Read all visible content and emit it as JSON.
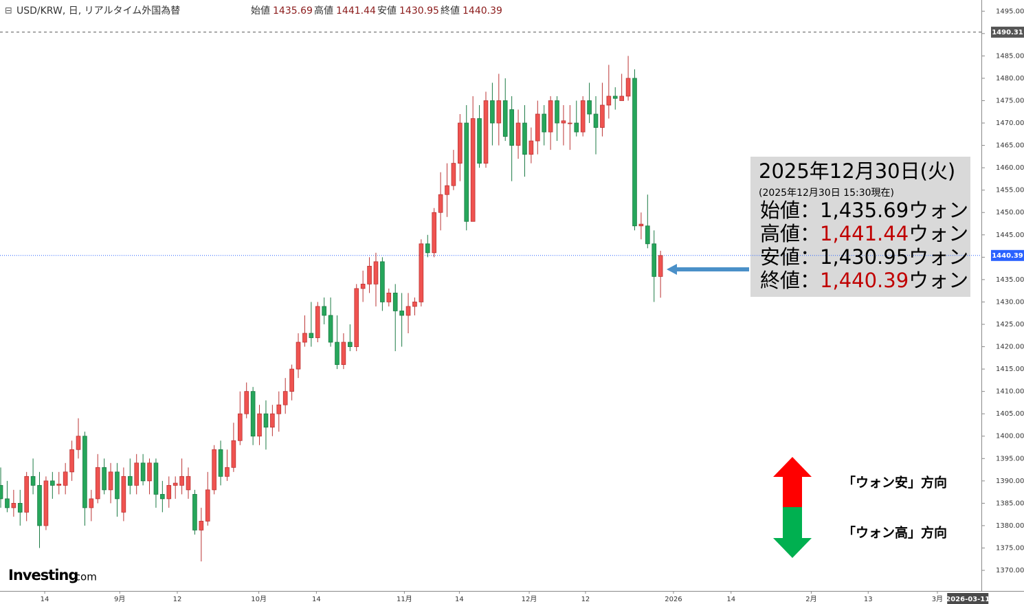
{
  "chart_data": {
    "type": "candlestick",
    "header": {
      "title": "USD/KRW, 日, リアルタイム外国為替",
      "ohlc": [
        {
          "label": "始値",
          "value": 1435.69
        },
        {
          "label": "高値",
          "value": 1441.44
        },
        {
          "label": "安値",
          "value": 1430.95
        },
        {
          "label": "終値",
          "value": 1440.39
        }
      ]
    },
    "up_color": "#ef5350",
    "down_color": "#26a65b",
    "candles": [
      [
        1389,
        1393,
        1384,
        1386
      ],
      [
        1386,
        1390,
        1383,
        1384
      ],
      [
        1384,
        1388,
        1382,
        1385
      ],
      [
        1385,
        1388,
        1380,
        1383
      ],
      [
        1383,
        1392,
        1381,
        1391
      ],
      [
        1391,
        1395,
        1387,
        1389
      ],
      [
        1389,
        1392,
        1375,
        1380
      ],
      [
        1380,
        1391,
        1379,
        1390
      ],
      [
        1390,
        1392,
        1386,
        1389
      ],
      [
        1389,
        1392,
        1387,
        1389.3
      ],
      [
        1389,
        1394,
        1387,
        1392
      ],
      [
        1392,
        1399,
        1390,
        1397
      ],
      [
        1397,
        1404,
        1395,
        1400
      ],
      [
        1400,
        1401,
        1380,
        1384
      ],
      [
        1384,
        1388,
        1381,
        1386
      ],
      [
        1386,
        1396,
        1385,
        1393
      ],
      [
        1393,
        1395,
        1387,
        1388
      ],
      [
        1388,
        1394,
        1385,
        1392
      ],
      [
        1392,
        1394,
        1382,
        1386
      ],
      [
        1383,
        1393,
        1381,
        1391
      ],
      [
        1391,
        1395,
        1387,
        1389
      ],
      [
        1389,
        1396,
        1387,
        1394
      ],
      [
        1394,
        1396,
        1389,
        1390
      ],
      [
        1390,
        1395,
        1387,
        1394
      ],
      [
        1394,
        1395,
        1384,
        1387
      ],
      [
        1387,
        1390,
        1383,
        1386
      ],
      [
        1386,
        1391,
        1384,
        1389
      ],
      [
        1389,
        1391,
        1386,
        1389.5
      ],
      [
        1389,
        1395,
        1387,
        1391
      ],
      [
        1388,
        1393,
        1386,
        1391
      ],
      [
        1387,
        1388,
        1378,
        1379
      ],
      [
        1379,
        1384,
        1372,
        1381
      ],
      [
        1381,
        1392,
        1380,
        1388
      ],
      [
        1388,
        1398,
        1387,
        1397
      ],
      [
        1397,
        1399,
        1389,
        1391
      ],
      [
        1391,
        1397,
        1390,
        1393
      ],
      [
        1393,
        1403,
        1392,
        1399
      ],
      [
        1399,
        1410,
        1398,
        1405
      ],
      [
        1405,
        1412,
        1404,
        1410
      ],
      [
        1410,
        1411,
        1398,
        1400
      ],
      [
        1400,
        1407,
        1398,
        1405
      ],
      [
        1405,
        1408,
        1397,
        1402
      ],
      [
        1402,
        1407,
        1400,
        1405
      ],
      [
        1405,
        1410,
        1401,
        1407
      ],
      [
        1407,
        1413,
        1405,
        1410
      ],
      [
        1410,
        1416,
        1408,
        1415
      ],
      [
        1415,
        1423,
        1413,
        1421
      ],
      [
        1421,
        1427,
        1420,
        1423
      ],
      [
        1423,
        1430,
        1420,
        1422
      ],
      [
        1422,
        1430,
        1421,
        1429
      ],
      [
        1429,
        1431,
        1425,
        1427
      ],
      [
        1427,
        1431,
        1420,
        1421
      ],
      [
        1421,
        1427,
        1415,
        1416
      ],
      [
        1416,
        1423,
        1415,
        1421
      ],
      [
        1421,
        1425,
        1419,
        1420
      ],
      [
        1420,
        1434,
        1419,
        1433
      ],
      [
        1433,
        1437,
        1430,
        1434
      ],
      [
        1434,
        1440,
        1432,
        1438
      ],
      [
        1434,
        1441,
        1429,
        1439
      ],
      [
        1439,
        1440,
        1428,
        1430
      ],
      [
        1430,
        1433,
        1429,
        1432
      ],
      [
        1432,
        1434,
        1419,
        1428
      ],
      [
        1428,
        1432,
        1420,
        1427
      ],
      [
        1427,
        1432,
        1423,
        1429
      ],
      [
        1429,
        1431,
        1427,
        1430
      ],
      [
        1430,
        1444,
        1429,
        1443
      ],
      [
        1443,
        1445,
        1440,
        1441
      ],
      [
        1441,
        1451,
        1440,
        1450
      ],
      [
        1450,
        1459,
        1446,
        1454
      ],
      [
        1454,
        1461,
        1449,
        1456
      ],
      [
        1456,
        1464,
        1455,
        1461
      ],
      [
        1461,
        1472,
        1457,
        1470
      ],
      [
        1470,
        1474,
        1446,
        1448
      ],
      [
        1448,
        1476,
        1448,
        1471
      ],
      [
        1471,
        1474,
        1460,
        1461
      ],
      [
        1461,
        1477,
        1460,
        1475
      ],
      [
        1475,
        1479,
        1465,
        1470
      ],
      [
        1470,
        1481,
        1465,
        1475
      ],
      [
        1475,
        1480,
        1466,
        1467
      ],
      [
        1473,
        1476,
        1457,
        1465
      ],
      [
        1465,
        1473,
        1462,
        1470
      ],
      [
        1470,
        1474,
        1458,
        1463
      ],
      [
        1463,
        1469,
        1461,
        1466
      ],
      [
        1466,
        1475,
        1463,
        1472
      ],
      [
        1472,
        1474,
        1465,
        1468
      ],
      [
        1468,
        1476,
        1464,
        1475
      ],
      [
        1475,
        1476,
        1466,
        1470
      ],
      [
        1470,
        1474,
        1465,
        1470.5
      ],
      [
        1470,
        1474,
        1464,
        1470
      ],
      [
        1470,
        1475,
        1467,
        1468
      ],
      [
        1468,
        1476,
        1467,
        1475
      ],
      [
        1475,
        1479,
        1470,
        1472
      ],
      [
        1472,
        1476,
        1463,
        1469
      ],
      [
        1469,
        1479,
        1467,
        1474
      ],
      [
        1474,
        1483,
        1471,
        1476
      ],
      [
        1476,
        1478,
        1473,
        1475.5
      ],
      [
        1475,
        1481,
        1475,
        1476
      ],
      [
        1476,
        1485,
        1475,
        1480
      ],
      [
        1480,
        1482,
        1446,
        1447
      ],
      [
        1447,
        1450,
        1444,
        1447.4
      ],
      [
        1447,
        1454,
        1442,
        1443
      ],
      [
        1443,
        1446,
        1430,
        1435.69
      ],
      [
        1435.69,
        1441.44,
        1430.95,
        1440.39
      ]
    ],
    "xlim": [
      -0.11,
      151.6
    ],
    "xticks": [
      {
        "value": 6.8,
        "label": "14"
      },
      {
        "value": 18.4,
        "label": "9月"
      },
      {
        "value": 27.3,
        "label": "12"
      },
      {
        "value": 39.9,
        "label": "10月"
      },
      {
        "value": 48.8,
        "label": "14"
      },
      {
        "value": 62.4,
        "label": "11月"
      },
      {
        "value": 70.9,
        "label": "14"
      },
      {
        "value": 81.7,
        "label": "12月"
      },
      {
        "value": 90.4,
        "label": "12"
      },
      {
        "value": 104,
        "label": "2026"
      },
      {
        "value": 112.9,
        "label": "14"
      },
      {
        "value": 125.3,
        "label": "2月"
      },
      {
        "value": 134.1,
        "label": "13"
      },
      {
        "value": 144.8,
        "label": "3月"
      }
    ],
    "cursor_date": {
      "value": 149.5,
      "label": "2026-03-11"
    },
    "ylim": [
      1365.4,
      1497.5
    ],
    "yticks": [
      {
        "value": 1370,
        "label": "1370.00"
      },
      {
        "value": 1375,
        "label": "1375.00"
      },
      {
        "value": 1380,
        "label": "1380.00"
      },
      {
        "value": 1385,
        "label": "1385.00"
      },
      {
        "value": 1390,
        "label": "1390.00"
      },
      {
        "value": 1395,
        "label": "1395.00"
      },
      {
        "value": 1400,
        "label": "1400.00"
      },
      {
        "value": 1405,
        "label": "1405.00"
      },
      {
        "value": 1410,
        "label": "1410.00"
      },
      {
        "value": 1415,
        "label": "1415.00"
      },
      {
        "value": 1420,
        "label": "1420.00"
      },
      {
        "value": 1425,
        "label": "1425.00"
      },
      {
        "value": 1430,
        "label": "1430.00"
      },
      {
        "value": 1435,
        "label": "1435.00"
      },
      {
        "value": 1440,
        "label": "1440.00"
      },
      {
        "value": 1445,
        "label": "1445.00"
      },
      {
        "value": 1450,
        "label": "1450.00"
      },
      {
        "value": 1455,
        "label": "1455.00"
      },
      {
        "value": 1460,
        "label": "1460.00"
      },
      {
        "value": 1465,
        "label": "1465.00"
      },
      {
        "value": 1470,
        "label": "1470.00"
      },
      {
        "value": 1475,
        "label": "1475.00"
      },
      {
        "value": 1480,
        "label": "1480.00"
      },
      {
        "value": 1485,
        "label": "1485.00"
      },
      {
        "value": 1490,
        "label": "1490.00"
      },
      {
        "value": 1495,
        "label": "1495.00"
      }
    ],
    "price_lines": [
      {
        "value": 1490.31,
        "color": "#555555",
        "dash": "4 4"
      },
      {
        "value": 1440.39,
        "color": "#2962ff",
        "dash": "1 2"
      }
    ],
    "info_box": {
      "date": "2025年12月30日(火)",
      "asof": "(2025年12月30日 15:30現在)",
      "sep": "：",
      "lines": [
        {
          "label": "始値",
          "value": 1435.69,
          "value_label": "1,435.69",
          "unit": "ウォン",
          "color": "#000000"
        },
        {
          "label": "高値",
          "value": 1441.44,
          "value_label": "1,441.44",
          "unit": "ウォン",
          "color": "#c00000"
        },
        {
          "label": "安値",
          "value": 1430.95,
          "value_label": "1,430.95",
          "unit": "ウォン",
          "color": "#000000"
        },
        {
          "label": "終値",
          "value": 1440.39,
          "value_label": "1,440.39",
          "unit": "ウォン",
          "color": "#c00000"
        }
      ]
    },
    "direction": {
      "up": "「ウォン安」方向",
      "down": "「ウォン高」方向"
    },
    "logo": {
      "brand": "Investing",
      "suffix": ".com"
    }
  }
}
